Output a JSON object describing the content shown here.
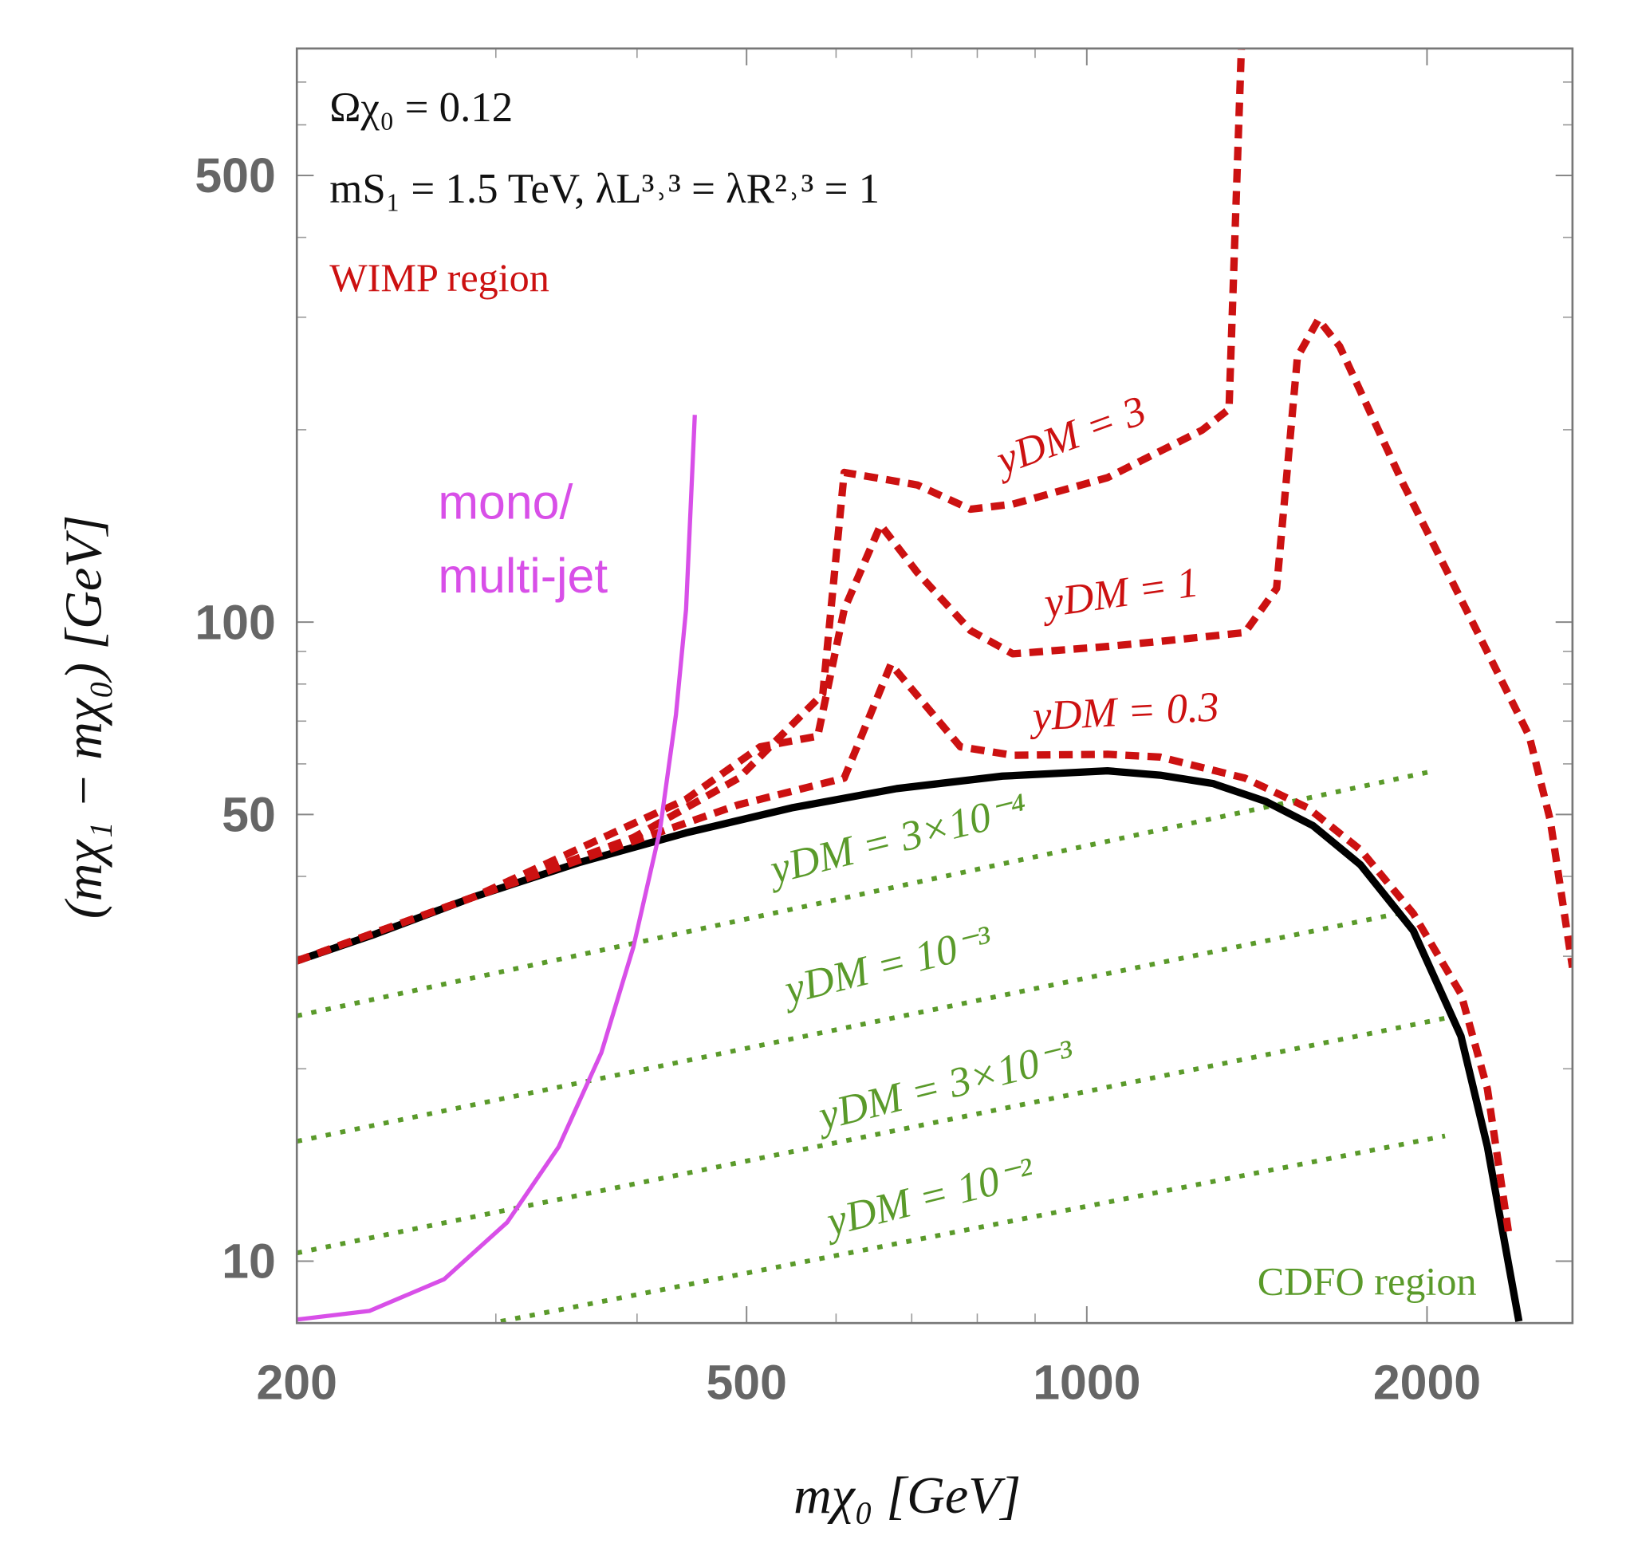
{
  "chart_data": {
    "type": "line",
    "xlabel": "mχ₀ [GeV]",
    "ylabel": "(mχ₁ − mχ₀) [GeV]",
    "xscale": "log",
    "yscale": "log",
    "xlim": [
      200,
      2690
    ],
    "ylim": [
      8,
      790
    ],
    "xticks": [
      200,
      500,
      1000,
      2000
    ],
    "yticks": [
      10,
      50,
      100,
      500
    ],
    "minor_xticks": [
      300,
      400,
      600,
      700,
      800,
      900
    ],
    "minor_yticks": [
      20,
      30,
      40,
      60,
      70,
      80,
      90,
      200,
      300,
      400,
      600,
      700
    ],
    "annotations": [
      {
        "text": "Ωχ₀ = 0.12",
        "color": "#111111"
      },
      {
        "text": "mS₁ = 1.5 TeV,  λL³˒³ = λR²˒³ = 1",
        "color": "#111111"
      },
      {
        "text": "WIMP region",
        "color": "#cc1111"
      },
      {
        "text": "CDFO region",
        "color": "#5a9a2a"
      },
      {
        "text": "mono/",
        "color": "#d84fe8"
      },
      {
        "text": "multi-jet",
        "color": "#d84fe8"
      }
    ],
    "series": [
      {
        "color": "#000000",
        "style": "solid",
        "x": [
          200,
          234.7,
          287.5,
          356.5,
          442,
          548,
          679,
          842,
          1043,
          1161,
          1293,
          1440,
          1586,
          1747,
          1945,
          2143,
          2262,
          2361,
          2412
        ],
        "y": [
          29.5,
          32.5,
          37.2,
          42.1,
          46.8,
          51.2,
          54.9,
          57.4,
          58.5,
          57.6,
          55.9,
          52.4,
          48.0,
          41.7,
          32.9,
          22.5,
          15.1,
          9.9,
          8.05
        ]
      },
      {
        "name": "yDM = 0.3",
        "color": "#cc1111",
        "style": "dashed",
        "x": [
          200,
          287.5,
          397,
          492,
          610,
          671,
          773,
          860,
          1043,
          1161,
          1380,
          1569,
          1747,
          1945,
          2143,
          2262,
          2361
        ],
        "y": [
          29.5,
          37.2,
          45.4,
          51.8,
          57.0,
          85.9,
          63.8,
          61.9,
          62.1,
          61.5,
          57.0,
          51.2,
          44.0,
          35.0,
          26.2,
          18.6,
          11.1
        ]
      },
      {
        "name": "yDM = 1",
        "color": "#cc1111",
        "style": "dashed",
        "x": [
          200,
          287.5,
          442,
          514,
          578,
          610,
          657,
          708,
          789,
          860,
          1043,
          1161,
          1380,
          1472,
          1536,
          1603,
          1674,
          1904,
          2213,
          2463,
          2571,
          2690
        ],
        "y": [
          29.5,
          37.2,
          52.8,
          63.8,
          66.3,
          104.7,
          141.9,
          119.6,
          97.0,
          89.2,
          91.6,
          93.3,
          96.3,
          112.9,
          260,
          297.6,
          270,
          165,
          97,
          66.3,
          49,
          28.8
        ]
      },
      {
        "name": "yDM = 3",
        "color": "#cc1111",
        "style": "dashed",
        "x": [
          200,
          287.5,
          397,
          492,
          584,
          610,
          650,
          708,
          789,
          860,
          1043,
          1265,
          1336,
          1370
        ],
        "y": [
          29.5,
          37.2,
          46.0,
          57.0,
          77.2,
          171.5,
          168.3,
          163.9,
          150.2,
          153.0,
          168.3,
          199.7,
          215.4,
          790
        ]
      },
      {
        "name": "yDM = 3×10⁻⁴",
        "color": "#5a9a2a",
        "style": "dotted",
        "x": [
          200,
          2030
        ],
        "y": [
          24.2,
          58.5
        ]
      },
      {
        "name": "yDM = 10⁻³",
        "color": "#5a9a2a",
        "style": "dotted",
        "x": [
          200,
          1945
        ],
        "y": [
          15.4,
          35.4
        ]
      },
      {
        "name": "yDM = 3×10⁻³",
        "color": "#5a9a2a",
        "style": "dotted",
        "x": [
          200,
          2075
        ],
        "y": [
          10.3,
          24.0
        ]
      },
      {
        "name": "yDM = 10⁻²",
        "color": "#5a9a2a",
        "style": "dotted",
        "x": [
          303,
          2075
        ],
        "y": [
          8.05,
          15.7
        ]
      },
      {
        "color": "#d84fe8",
        "style": "solid",
        "x": [
          200,
          232,
          270,
          307,
          341,
          372,
          397,
          419,
          433,
          442,
          450
        ],
        "y": [
          8.1,
          8.36,
          9.37,
          11.5,
          15.1,
          21.2,
          31.0,
          47.1,
          71.6,
          104.7,
          211
        ]
      }
    ]
  }
}
